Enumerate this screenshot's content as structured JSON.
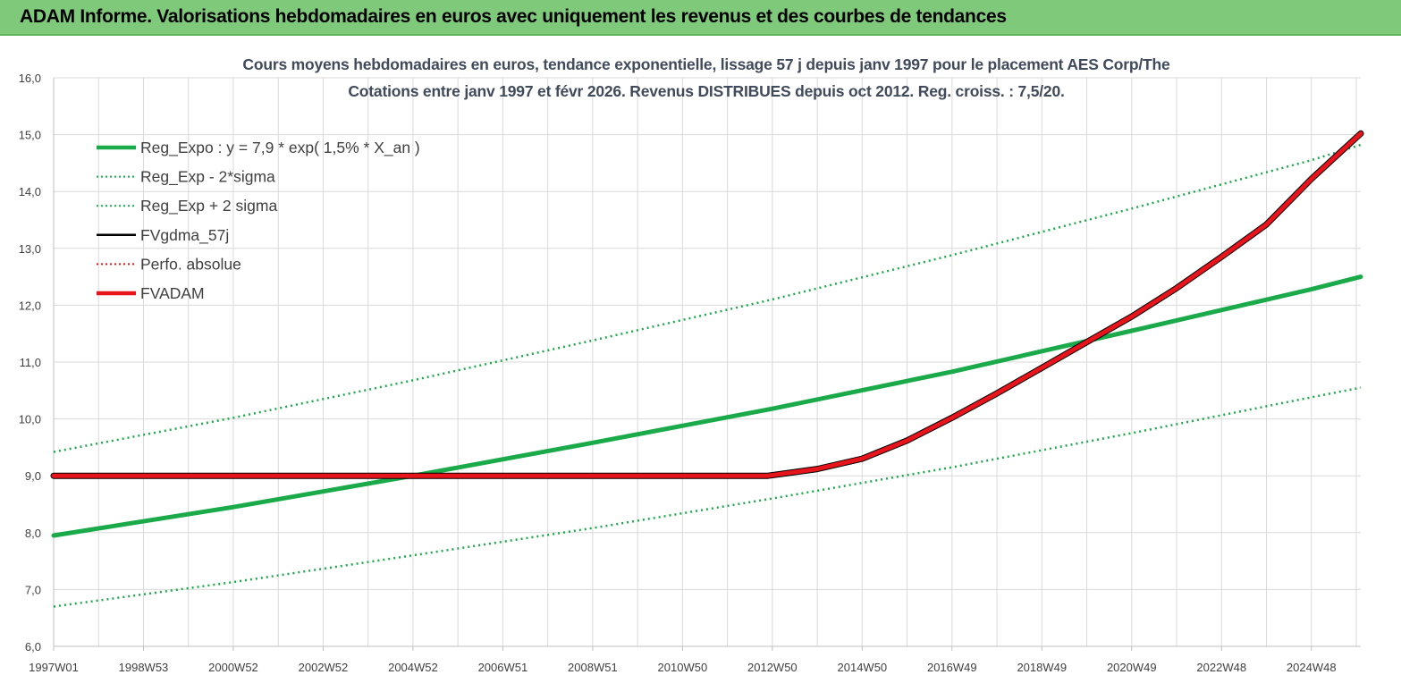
{
  "header": {
    "title": "ADAM Informe. Valorisations hebdomadaires en euros avec uniquement les revenus et des courbes de tendances"
  },
  "colors": {
    "header_bg": "#7fc97a",
    "trend_green": "#1aaa4a",
    "fvadam_red": "#e8141c",
    "fvgdma_black": "#000000",
    "perfo_red": "#e8141c",
    "grid": "#d9d9d9"
  },
  "chart_data": {
    "type": "line",
    "title_line1": "Cours moyens hebdomadaires en euros, tendance exponentielle, lissage 57 j depuis janv 1997 pour le placement AES Corp/The",
    "title_line2": "Cotations entre janv 1997 et févr 2026. Revenus DISTRIBUES depuis oct 2012. Reg. croiss. : 7,5/20.",
    "x_range": [
      1997.0,
      2026.1
    ],
    "ylim": [
      6.0,
      16.0
    ],
    "y_ticks": [
      "6,0",
      "7,0",
      "8,0",
      "9,0",
      "10,0",
      "11,0",
      "12,0",
      "13,0",
      "14,0",
      "15,0",
      "16,0"
    ],
    "x_ticks": [
      {
        "label": "1997W01",
        "x": 1997.0
      },
      {
        "label": "1998W53",
        "x": 1999.0
      },
      {
        "label": "2000W52",
        "x": 2001.0
      },
      {
        "label": "2002W52",
        "x": 2003.0
      },
      {
        "label": "2004W52",
        "x": 2005.0
      },
      {
        "label": "2006W51",
        "x": 2007.0
      },
      {
        "label": "2008W51",
        "x": 2009.0
      },
      {
        "label": "2010W50",
        "x": 2011.0
      },
      {
        "label": "2012W50",
        "x": 2013.0
      },
      {
        "label": "2014W50",
        "x": 2015.0
      },
      {
        "label": "2016W49",
        "x": 2017.0
      },
      {
        "label": "2018W49",
        "x": 2019.0
      },
      {
        "label": "2020W49",
        "x": 2021.0
      },
      {
        "label": "2022W48",
        "x": 2023.0
      },
      {
        "label": "2024W48",
        "x": 2025.0
      }
    ],
    "legend_placement": "top-left",
    "series": [
      {
        "name": "Reg_Expo : y = 7,9 * exp( 1,5% *  X_an )",
        "style": "solid-thick",
        "color": "#1aaa4a",
        "x": [
          1997.0,
          2001.0,
          2005.0,
          2009.0,
          2013.0,
          2017.0,
          2021.0,
          2025.0,
          2026.1
        ],
        "y": [
          7.95,
          8.45,
          9.0,
          9.58,
          10.18,
          10.83,
          11.55,
          12.28,
          12.5
        ]
      },
      {
        "name": "Reg_Exp - 2*sigma",
        "style": "dotted",
        "color": "#1aaa4a",
        "x": [
          1997.0,
          2001.0,
          2005.0,
          2009.0,
          2013.0,
          2017.0,
          2021.0,
          2025.0,
          2026.1
        ],
        "y": [
          6.7,
          7.13,
          7.6,
          8.08,
          8.6,
          9.15,
          9.75,
          10.38,
          10.55
        ]
      },
      {
        "name": "Reg_Exp + 2 sigma",
        "style": "dotted",
        "color": "#1aaa4a",
        "x": [
          1997.0,
          2001.0,
          2005.0,
          2009.0,
          2013.0,
          2017.0,
          2021.0,
          2025.0,
          2026.1
        ],
        "y": [
          9.42,
          10.02,
          10.68,
          11.38,
          12.1,
          12.88,
          13.7,
          14.55,
          14.82
        ]
      },
      {
        "name": "FVgdma_57j",
        "style": "solid",
        "color": "#000000",
        "x": [
          1997.0,
          2012.9,
          2014.0,
          2015.0,
          2016.0,
          2017.0,
          2018.0,
          2019.0,
          2020.0,
          2021.0,
          2022.0,
          2023.0,
          2024.0,
          2025.0,
          2026.1
        ],
        "y": [
          9.0,
          9.0,
          9.12,
          9.3,
          9.62,
          10.02,
          10.45,
          10.9,
          11.35,
          11.8,
          12.3,
          12.85,
          13.42,
          14.22,
          15.02
        ]
      },
      {
        "name": "Perfo. absolue",
        "style": "dotted",
        "color": "#e8141c",
        "x": [],
        "y": []
      },
      {
        "name": "FVADAM",
        "style": "solid-thick",
        "color": "#e8141c",
        "x": [
          1997.0,
          2012.9,
          2014.0,
          2015.0,
          2016.0,
          2017.0,
          2018.0,
          2019.0,
          2020.0,
          2021.0,
          2022.0,
          2023.0,
          2024.0,
          2025.0,
          2026.1
        ],
        "y": [
          9.0,
          9.0,
          9.12,
          9.3,
          9.62,
          10.02,
          10.45,
          10.9,
          11.35,
          11.8,
          12.3,
          12.85,
          13.42,
          14.22,
          15.02
        ]
      }
    ]
  }
}
